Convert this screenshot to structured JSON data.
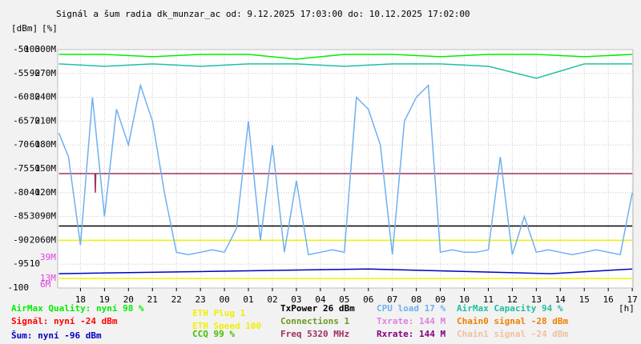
{
  "chart_data": {
    "type": "line",
    "title": "Signál a šum radia dk_munzar_ac od: 9.12.2025 17:03:00 do: 10.12.2025 17:02:00",
    "y_unit": "[dBm]",
    "y2_unit": "[%]",
    "x_unit": "[h]",
    "xlim": [
      17.05,
      41.03
    ],
    "xticks": [
      18,
      19,
      20,
      21,
      22,
      23,
      {
        "value": 24,
        "label": "00"
      },
      {
        "value": 25,
        "label": "01"
      },
      {
        "value": 26,
        "label": "02"
      },
      {
        "value": 27,
        "label": "03"
      },
      {
        "value": 28,
        "label": "04"
      },
      {
        "value": 29,
        "label": "05"
      },
      {
        "value": 30,
        "label": "06"
      },
      {
        "value": 31,
        "label": "07"
      },
      {
        "value": 32,
        "label": "08"
      },
      {
        "value": 33,
        "label": "09"
      },
      {
        "value": 34,
        "label": "10"
      },
      {
        "value": 35,
        "label": "11"
      },
      {
        "value": 36,
        "label": "12"
      },
      {
        "value": 37,
        "label": "13"
      },
      {
        "value": 38,
        "label": "14"
      },
      {
        "value": 39,
        "label": "15"
      },
      {
        "value": 40,
        "label": "16"
      },
      {
        "value": 41,
        "label": "17"
      }
    ],
    "ylim": [
      -100,
      -50
    ],
    "yticks": [
      -50,
      -55,
      -60,
      -65,
      -70,
      -75,
      -80,
      -85,
      -90,
      -95,
      -100
    ],
    "y2lim": [
      0,
      100
    ],
    "y2ticks": [
      100,
      90,
      80,
      70,
      60,
      50,
      40,
      30,
      20,
      10
    ],
    "y3lim": [
      0,
      300
    ],
    "y3ticks": [
      {
        "value": 300,
        "label": "300M"
      },
      {
        "value": 270,
        "label": "270M"
      },
      {
        "value": 240,
        "label": "240M"
      },
      {
        "value": 210,
        "label": "210M"
      },
      {
        "value": 180,
        "label": "180M"
      },
      {
        "value": 150,
        "label": "150M"
      },
      {
        "value": 120,
        "label": "120M"
      },
      {
        "value": 90,
        "label": "90M"
      },
      {
        "value": 60,
        "label": "60M"
      }
    ],
    "annotations": [
      "39M",
      "13M",
      "6M"
    ],
    "annotation_color": "#e040e0",
    "grid": true,
    "series": [
      {
        "name": "AirMax Quality: nyní 98 %",
        "color": "#00ee00",
        "axis": "y2",
        "x": [
          17.1,
          19,
          21,
          23,
          25,
          27,
          29,
          31,
          33,
          35,
          37,
          39,
          41
        ],
        "values": [
          98,
          98,
          97,
          98,
          98,
          96,
          98,
          98,
          97,
          98,
          98,
          97,
          98
        ]
      },
      {
        "name": "Signál: nyní -24 dBm",
        "color": "#ff0000"
      },
      {
        "name": "Šum: nyní -96 dBm",
        "color": "#0000c0",
        "axis": "y",
        "x": [
          17.1,
          30,
          37.6,
          41
        ],
        "values": [
          -97,
          -96,
          -97,
          -96
        ]
      },
      {
        "name": "ETH Plug 1",
        "color": "#f0f000",
        "axis": "y",
        "x": [
          17.1,
          41
        ],
        "values": [
          -90,
          -90
        ]
      },
      {
        "name": "ETH Speed 100",
        "color": "#f0f000",
        "axis": "y",
        "x": [
          17.1,
          41
        ],
        "values": [
          -98,
          -98
        ]
      },
      {
        "name": "CCQ 99 %",
        "color": "#40c000"
      },
      {
        "name": "TxPower 26 dBm",
        "color": "#000000",
        "axis": "y",
        "x": [
          17.1,
          41
        ],
        "values": [
          -87,
          -87
        ]
      },
      {
        "name": "Connections 1",
        "color": "#6a9a20"
      },
      {
        "name": "Freq 5320 MHz",
        "color": "#a03060",
        "axis": "y",
        "x": [
          17.1,
          18.6,
          18.62,
          18.64,
          41
        ],
        "values": [
          -76,
          -76,
          -80,
          -76,
          -76
        ]
      },
      {
        "name": "CPU load 17 %",
        "color": "#6fb0f0",
        "axis": "y2",
        "x": [
          17.1,
          17.5,
          18,
          18.5,
          19,
          19.5,
          20,
          20.5,
          21,
          21.5,
          22,
          22.5,
          23,
          23.5,
          24,
          24.5,
          25,
          25.5,
          26,
          26.5,
          27,
          27.5,
          28,
          28.5,
          29,
          29.5,
          30,
          30.5,
          31,
          31.5,
          32,
          32.5,
          33,
          33.5,
          34,
          34.5,
          35,
          35.5,
          36,
          36.5,
          37,
          37.5,
          38,
          38.5,
          39,
          39.5,
          40,
          40.5,
          41
        ],
        "values": [
          65,
          55,
          18,
          80,
          30,
          75,
          60,
          85,
          70,
          40,
          15,
          14,
          15,
          16,
          15,
          25,
          70,
          20,
          60,
          15,
          45,
          14,
          15,
          16,
          15,
          80,
          75,
          60,
          14,
          70,
          80,
          85,
          15,
          16,
          15,
          15,
          16,
          55,
          14,
          30,
          15,
          16,
          15,
          14,
          15,
          16,
          15,
          14,
          40
        ]
      },
      {
        "name": "Txrate: 144 M",
        "color": "#e080e0"
      },
      {
        "name": "Rxrate: 144 M",
        "color": "#800080"
      },
      {
        "name": "AirMax Capacity 94 %",
        "color": "#20c0a0",
        "axis": "y2",
        "x": [
          17.1,
          19,
          21,
          23,
          25,
          27,
          29,
          31,
          33,
          35,
          37,
          39,
          41
        ],
        "values": [
          94,
          93,
          94,
          93,
          94,
          94,
          93,
          94,
          94,
          93,
          88,
          94,
          94
        ]
      },
      {
        "name": "Chain0 signal -28 dBm",
        "color": "#f08000"
      },
      {
        "name": "Chain1 signal -24 dBm",
        "color": "#f0c0a0"
      }
    ]
  }
}
